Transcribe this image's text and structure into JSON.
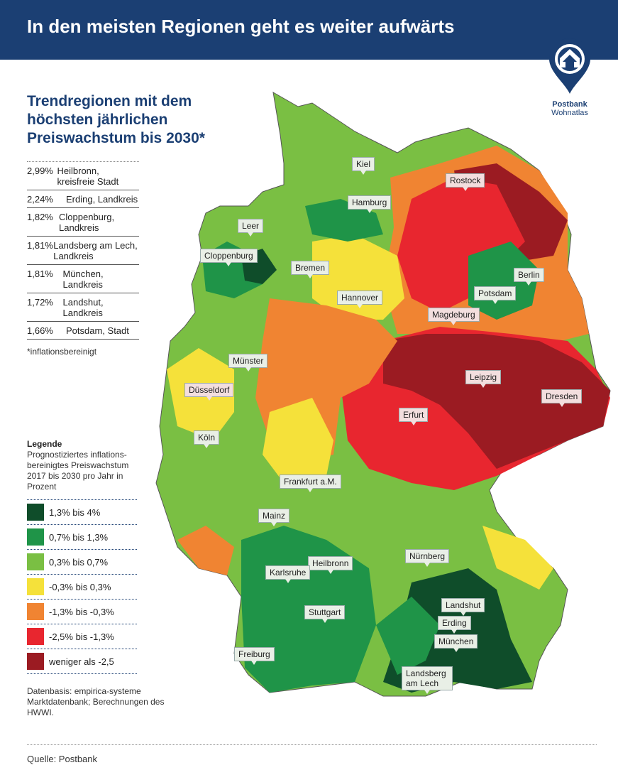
{
  "header": {
    "title": "In den meisten Regionen geht es weiter aufwärts"
  },
  "logo": {
    "name": "Postbank",
    "sub": "Wohnatlas",
    "icon": "house-pin-icon"
  },
  "subtitle": "Trendregionen mit dem höchsten jährlichen Preiswachstum bis 2030*",
  "ranking": [
    {
      "pct": "2,99%",
      "region": "Heilbronn, kreisfreie Stadt"
    },
    {
      "pct": "2,24%",
      "region": "Erding, Landkreis"
    },
    {
      "pct": "1,82%",
      "region": "Cloppenburg, Landkreis"
    },
    {
      "pct": "1,81%",
      "region": "Landsberg am Lech, Landkreis"
    },
    {
      "pct": "1,81%",
      "region": "München, Landkreis"
    },
    {
      "pct": "1,72%",
      "region": "Landshut, Landkreis"
    },
    {
      "pct": "1,66%",
      "region": "Potsdam, Stadt"
    }
  ],
  "note": "*inflationsbereinigt",
  "legend": {
    "title": "Legende",
    "description": "Prognostiziertes inflations-bereinigtes Preiswachstum 2017 bis 2030 pro Jahr in Prozent",
    "items": [
      {
        "label": "1,3% bis 4%",
        "color": "#0f4d2a"
      },
      {
        "label": "0,7% bis 1,3%",
        "color": "#1f9448"
      },
      {
        "label": "0,3% bis 0,7%",
        "color": "#7abf43"
      },
      {
        "label": "-0,3% bis 0,3%",
        "color": "#f5e13a"
      },
      {
        "label": "-1,3% bis -0,3%",
        "color": "#f08432"
      },
      {
        "label": "-2,5% bis -1,3%",
        "color": "#e8262f"
      },
      {
        "label": "weniger als -2,5",
        "color": "#9b1b22"
      }
    ]
  },
  "source": "Datenbasis: empirica-systeme Marktdatenbank; Berechnungen des HWWI.",
  "footer": "Quelle: Postbank",
  "cities": [
    "Kiel",
    "Rostock",
    "Hamburg",
    "Leer",
    "Cloppenburg",
    "Bremen",
    "Berlin",
    "Hannover",
    "Potsdam",
    "Magdeburg",
    "Münster",
    "Leipzig",
    "Düsseldorf",
    "Dresden",
    "Erfurt",
    "Köln",
    "Frankfurt a.M.",
    "Mainz",
    "Nürnberg",
    "Heilbronn",
    "Karlsruhe",
    "Landshut",
    "Stuttgart",
    "Erding",
    "München",
    "Freiburg",
    "Landsberg am Lech"
  ]
}
